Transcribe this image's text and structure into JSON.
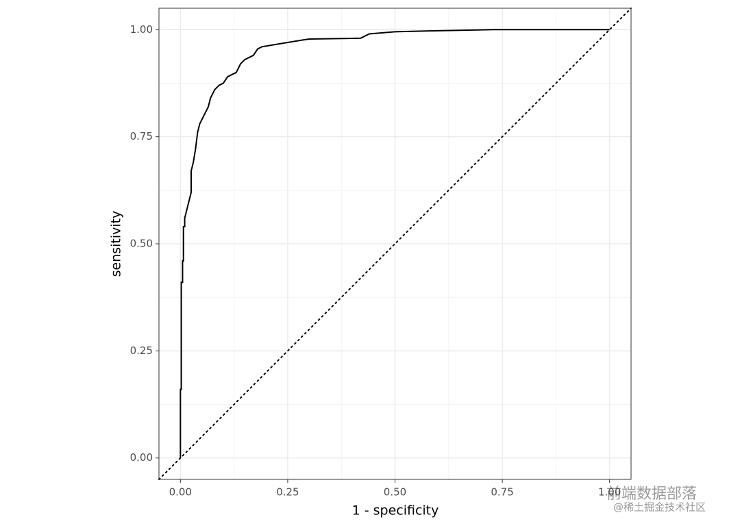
{
  "chart_data": {
    "type": "line",
    "xlabel": "1 - specificity",
    "ylabel": "sensitivity",
    "x": [
      0,
      0,
      0.002,
      0.002,
      0.005,
      0.005,
      0.007,
      0.007,
      0.01,
      0.01,
      0.015,
      0.02,
      0.025,
      0.025,
      0.03,
      0.035,
      0.04,
      0.045,
      0.05,
      0.055,
      0.06,
      0.065,
      0.07,
      0.075,
      0.08,
      0.09,
      0.1,
      0.11,
      0.12,
      0.13,
      0.14,
      0.15,
      0.17,
      0.18,
      0.19,
      0.22,
      0.25,
      0.28,
      0.3,
      0.42,
      0.44,
      0.5,
      0.58,
      0.73,
      1
    ],
    "series": [
      {
        "name": "sensitivity",
        "color": "#000000",
        "values": [
          0,
          0.16,
          0.16,
          0.41,
          0.41,
          0.46,
          0.46,
          0.54,
          0.54,
          0.56,
          0.58,
          0.6,
          0.62,
          0.67,
          0.69,
          0.72,
          0.76,
          0.78,
          0.79,
          0.8,
          0.81,
          0.82,
          0.84,
          0.85,
          0.86,
          0.87,
          0.875,
          0.89,
          0.895,
          0.9,
          0.92,
          0.93,
          0.94,
          0.955,
          0.96,
          0.965,
          0.97,
          0.975,
          0.978,
          0.98,
          0.99,
          0.995,
          0.997,
          1,
          1
        ]
      }
    ],
    "reference_line": {
      "slope": 1,
      "intercept": 0
    },
    "xlim": [
      -0.05,
      1.05
    ],
    "ylim": [
      -0.05,
      1.05
    ],
    "xticks": [
      {
        "value": 0,
        "label": "0.00"
      },
      {
        "value": 0.25,
        "label": "0.25"
      },
      {
        "value": 0.5,
        "label": "0.50"
      },
      {
        "value": 0.75,
        "label": "0.75"
      },
      {
        "value": 1,
        "label": "1.00"
      }
    ],
    "yticks": [
      {
        "value": 0,
        "label": "0.00"
      },
      {
        "value": 0.25,
        "label": "0.25"
      },
      {
        "value": 0.5,
        "label": "0.50"
      },
      {
        "value": 0.75,
        "label": "0.75"
      },
      {
        "value": 1,
        "label": "1.00"
      }
    ],
    "grid": true,
    "watermark": [
      "前端数据部落",
      "@稀土掘金技术社区"
    ]
  }
}
